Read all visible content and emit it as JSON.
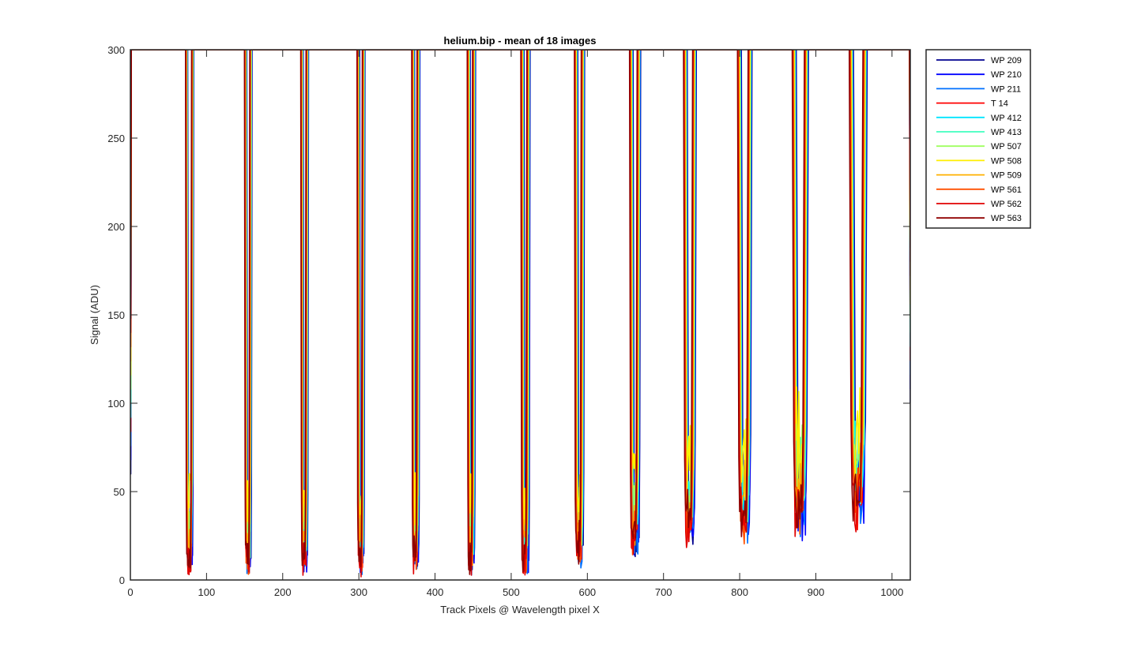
{
  "chart_data": {
    "type": "line",
    "title": "helium.bip - mean of 18 images",
    "xlabel": "Track Pixels @ Wavelength pixel X",
    "ylabel": "Signal (ADU)",
    "xlim": [
      0,
      1024
    ],
    "ylim": [
      0,
      300
    ],
    "xticks": [
      0,
      100,
      200,
      300,
      400,
      500,
      600,
      700,
      800,
      900,
      1000
    ],
    "yticks": [
      0,
      50,
      100,
      150,
      200,
      250,
      300
    ],
    "grid": false,
    "legend_position": "outside-top-right",
    "track_centers": [
      78,
      155,
      229,
      303,
      375,
      448,
      519,
      590,
      663,
      735,
      807,
      880,
      956
    ],
    "track_half_widths": [
      4,
      3.5,
      3.5,
      3.5,
      3.5,
      3.5,
      4,
      4.5,
      5,
      6,
      7,
      8,
      9
    ],
    "series": [
      {
        "name": "WP 209",
        "color": "#00008f",
        "offset": 1.2,
        "floor": 12
      },
      {
        "name": "WP 210",
        "color": "#0000ff",
        "offset": 0.8,
        "floor": 8
      },
      {
        "name": "WP 211",
        "color": "#0070ff",
        "offset": 0.2,
        "floor": 5
      },
      {
        "name": "T 14",
        "color": "#ff0000",
        "offset": -0.3,
        "floor": 10
      },
      {
        "name": "WP 412",
        "color": "#00e5ff",
        "offset": 0.5,
        "floor": 25
      },
      {
        "name": "WP 413",
        "color": "#40ffbf",
        "offset": 0.3,
        "floor": 30
      },
      {
        "name": "WP 507",
        "color": "#9fff60",
        "offset": 0.0,
        "floor": 40
      },
      {
        "name": "WP 508",
        "color": "#ffef00",
        "offset": -0.2,
        "floor": 55
      },
      {
        "name": "WP 509",
        "color": "#ffb000",
        "offset": -0.6,
        "floor": 20
      },
      {
        "name": "WP 561",
        "color": "#ff5000",
        "offset": -0.9,
        "floor": 6
      },
      {
        "name": "WP 562",
        "color": "#e00000",
        "offset": -1.3,
        "floor": 4
      },
      {
        "name": "WP 563",
        "color": "#900000",
        "offset": -1.6,
        "floor": 9
      }
    ]
  }
}
